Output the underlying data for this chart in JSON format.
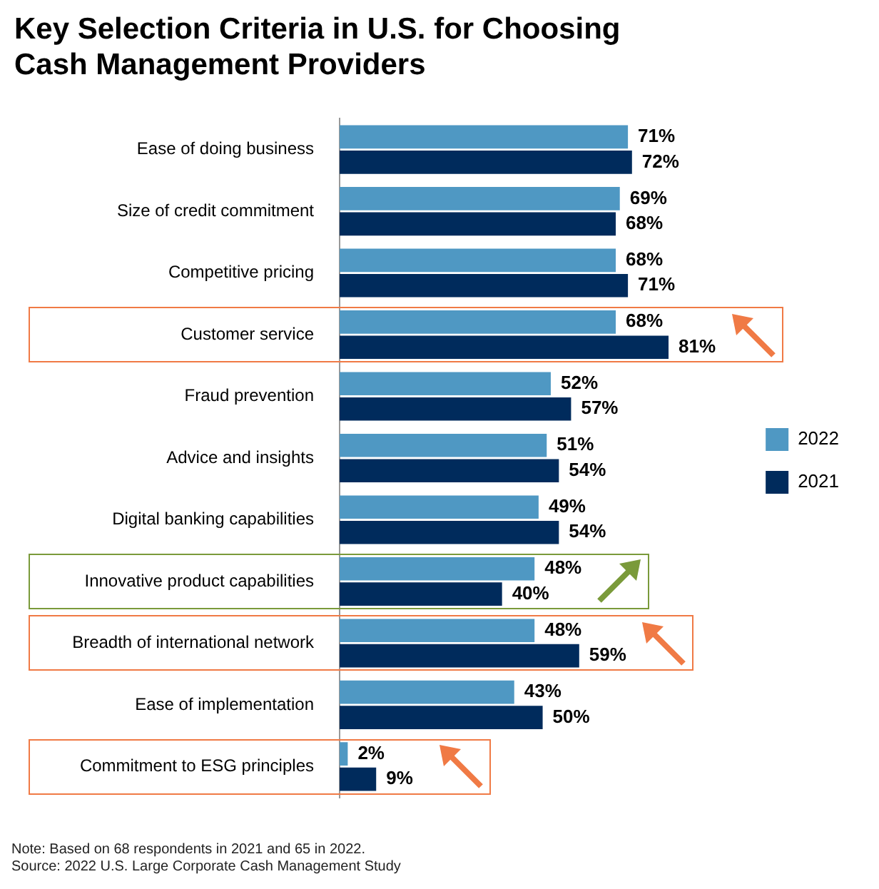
{
  "chart_data": {
    "type": "bar",
    "orientation": "horizontal",
    "title": "Key Selection Criteria in U.S. for Choosing Cash Management Providers",
    "categories": [
      "Ease of doing business",
      "Size of credit commitment",
      "Competitive pricing",
      "Customer service",
      "Fraud prevention",
      "Advice and insights",
      "Digital banking capabilities",
      "Innovative product capabilities",
      "Breadth of international network",
      "Ease of implementation",
      "Commitment to ESG principles"
    ],
    "series": [
      {
        "name": "2022",
        "color": "#4f98c3",
        "values": [
          71,
          69,
          68,
          68,
          52,
          51,
          49,
          48,
          48,
          43,
          2
        ],
        "value_labels": [
          "71%",
          "69%",
          "68%",
          "68%",
          "52%",
          "51%",
          "49%",
          "48%",
          "48%",
          "43%",
          "2%"
        ]
      },
      {
        "name": "2021",
        "color": "#002b5c",
        "values": [
          72,
          68,
          71,
          81,
          57,
          54,
          54,
          40,
          59,
          50,
          9
        ],
        "value_labels": [
          "72%",
          "68%",
          "71%",
          "81%",
          "57%",
          "54%",
          "54%",
          "40%",
          "59%",
          "50%",
          "9%"
        ]
      }
    ],
    "legend": "right",
    "annotations": [
      "Note: Based on 68 respondents in 2021 and 65 in 2022.",
      "Source: 2022 U.S. Large Corporate Cash Management Study"
    ]
  }
}
